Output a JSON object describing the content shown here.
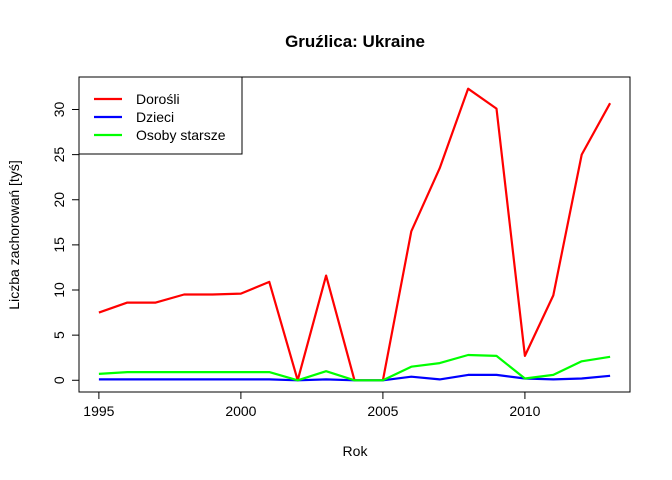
{
  "chart_data": {
    "type": "line",
    "title": "Gruźlica: Ukraine",
    "xlabel": "Rok",
    "ylabel": "Liczba zachorowań [tyś]",
    "xlim": [
      1994.3,
      2013.7
    ],
    "ylim": [
      -1.3,
      33.6
    ],
    "x_ticks": [
      1995,
      2000,
      2005,
      2010
    ],
    "y_ticks": [
      0,
      5,
      10,
      15,
      20,
      25,
      30
    ],
    "grid": false,
    "legend_position": "top-left",
    "x": [
      1995,
      1996,
      1997,
      1998,
      1999,
      2000,
      2001,
      2002,
      2003,
      2004,
      2005,
      2006,
      2007,
      2008,
      2009,
      2010,
      2011,
      2012,
      2013
    ],
    "series": [
      {
        "name": "Dorośli",
        "color": "#ff0000",
        "values": [
          7.5,
          8.6,
          8.6,
          9.5,
          9.5,
          9.6,
          10.9,
          0.0,
          11.6,
          0.0,
          0.0,
          16.5,
          23.5,
          32.3,
          30.1,
          2.7,
          9.4,
          25.0,
          30.7
        ]
      },
      {
        "name": "Dzieci",
        "color": "#0000ff",
        "values": [
          0.1,
          0.1,
          0.1,
          0.1,
          0.1,
          0.1,
          0.1,
          0.0,
          0.1,
          0.0,
          0.0,
          0.4,
          0.1,
          0.6,
          0.6,
          0.2,
          0.1,
          0.2,
          0.5
        ]
      },
      {
        "name": "Osoby starsze",
        "color": "#00ff00",
        "values": [
          0.7,
          0.9,
          0.9,
          0.9,
          0.9,
          0.9,
          0.9,
          0.0,
          1.0,
          0.0,
          0.0,
          1.5,
          1.9,
          2.8,
          2.7,
          0.2,
          0.6,
          2.1,
          2.6
        ]
      }
    ]
  }
}
